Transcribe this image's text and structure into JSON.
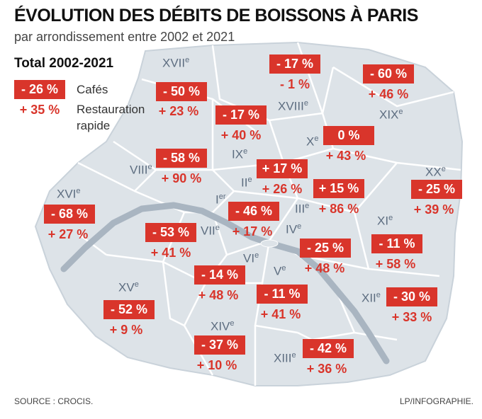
{
  "title": "ÉVOLUTION DES DÉBITS DE BOISSONS À PARIS",
  "subtitle": "par arrondissement entre 2002 et 2021",
  "legend": {
    "title": "Total 2002-2021",
    "cafes_value": "- 26 %",
    "cafes_label": "Cafés",
    "resto_value": "+ 35 %",
    "resto_label_1": "Restauration",
    "resto_label_2": "rapide"
  },
  "arrondissements": [
    {
      "label": "I",
      "sup": "er",
      "cafes": "- 46 %",
      "resto": "+ 17 %"
    },
    {
      "label": "II",
      "sup": "e",
      "cafes": "+ 17 %",
      "resto": "+ 26 %"
    },
    {
      "label": "III",
      "sup": "e",
      "cafes": "+ 15 %",
      "resto": "+ 86 %"
    },
    {
      "label": "IV",
      "sup": "e",
      "cafes": "- 25 %",
      "resto": "+ 48 %"
    },
    {
      "label": "V",
      "sup": "e",
      "cafes": "- 11 %",
      "resto": "+ 41 %"
    },
    {
      "label": "VI",
      "sup": "e",
      "cafes": "- 14 %",
      "resto": "+ 48 %"
    },
    {
      "label": "VII",
      "sup": "e",
      "cafes": "- 53 %",
      "resto": "+ 41 %"
    },
    {
      "label": "VIII",
      "sup": "e",
      "cafes": "- 58 %",
      "resto": "+ 90 %"
    },
    {
      "label": "IX",
      "sup": "e",
      "cafes": "- 17 %",
      "resto": "+ 40 %"
    },
    {
      "label": "X",
      "sup": "e",
      "cafes": "0 %",
      "resto": "+ 43 %"
    },
    {
      "label": "XI",
      "sup": "e",
      "cafes": "- 11 %",
      "resto": "+ 58 %"
    },
    {
      "label": "XII",
      "sup": "e",
      "cafes": "- 30 %",
      "resto": "+ 33 %"
    },
    {
      "label": "XIII",
      "sup": "e",
      "cafes": "- 42 %",
      "resto": "+ 36 %"
    },
    {
      "label": "XIV",
      "sup": "e",
      "cafes": "- 37 %",
      "resto": "+ 10 %"
    },
    {
      "label": "XV",
      "sup": "e",
      "cafes": "- 52 %",
      "resto": "+ 9 %"
    },
    {
      "label": "XVI",
      "sup": "e",
      "cafes": "- 68 %",
      "resto": "+ 27 %"
    },
    {
      "label": "XVII",
      "sup": "e",
      "cafes": "- 50 %",
      "resto": "+ 23 %"
    },
    {
      "label": "XVIII",
      "sup": "e",
      "cafes": "- 17 %",
      "resto": "- 1 %"
    },
    {
      "label": "XIX",
      "sup": "e",
      "cafes": "- 60 %",
      "resto": "+ 46 %"
    },
    {
      "label": "XX",
      "sup": "e",
      "cafes": "- 25 %",
      "resto": "+ 39 %"
    }
  ],
  "footer": {
    "source": "SOURCE : CROCIS.",
    "credit": "LP/INFOGRAPHIE."
  },
  "colors": {
    "cafes_box": "#d9352b",
    "resto_text": "#d9352b",
    "map_fill": "#dde3e8",
    "seine": "#a9b5c1",
    "border": "#ffffff",
    "label": "#5d6d80"
  }
}
